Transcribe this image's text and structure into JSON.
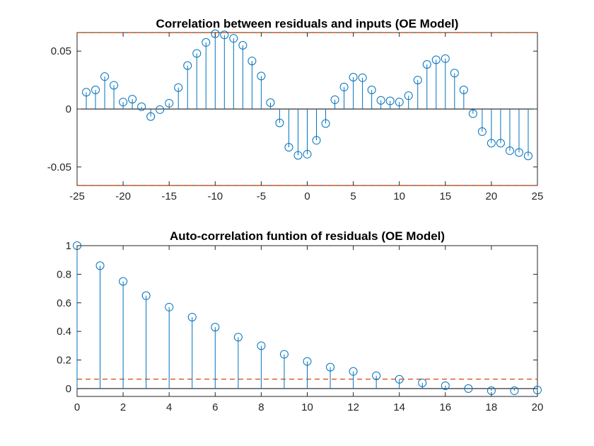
{
  "chart_data": [
    {
      "type": "stem",
      "title": "Correlation between residuals and inputs (OE Model)",
      "xlabel": "",
      "ylabel": "",
      "xlim": [
        -25,
        25
      ],
      "ylim": [
        -0.066,
        0.066
      ],
      "x_ticks": [
        -25,
        -20,
        -15,
        -10,
        -5,
        0,
        5,
        10,
        15,
        20,
        25
      ],
      "x_tick_labels": [
        "-25",
        "-20",
        "-15",
        "-10",
        "-5",
        "0",
        "5",
        "10",
        "15",
        "20",
        "25"
      ],
      "y_ticks": [
        -0.05,
        0,
        0.05
      ],
      "y_tick_labels": [
        "-0.05",
        "0",
        "0.05"
      ],
      "confidence_bound": 0.066,
      "grid": false,
      "colors": {
        "stem": "#0072BD",
        "bound": "#D95319",
        "zero_line": "#000000"
      },
      "series": [
        {
          "x": [
            -24,
            -23,
            -22,
            -21,
            -20,
            -19,
            -18,
            -17,
            -16,
            -15,
            -14,
            -13,
            -12,
            -11,
            -10,
            -9,
            -8,
            -7,
            -6,
            -5,
            -4,
            -3,
            -2,
            -1,
            0,
            1,
            2,
            3,
            4,
            5,
            6,
            7,
            8,
            9,
            10,
            11,
            12,
            13,
            14,
            15,
            16,
            17,
            18,
            19,
            20,
            21,
            22,
            23,
            24
          ],
          "values": [
            0.0145,
            0.0165,
            0.028,
            0.0205,
            0.006,
            0.0085,
            0.002,
            -0.0065,
            -0.0005,
            0.005,
            0.0185,
            0.0375,
            0.048,
            0.0575,
            0.065,
            0.064,
            0.061,
            0.055,
            0.0415,
            0.0285,
            0.0055,
            -0.012,
            -0.033,
            -0.04,
            -0.039,
            -0.027,
            -0.0125,
            0.008,
            0.019,
            0.0275,
            0.027,
            0.0165,
            0.0075,
            0.007,
            0.006,
            0.0115,
            0.025,
            0.0385,
            0.0425,
            0.0435,
            0.031,
            0.0165,
            -0.004,
            -0.0195,
            -0.0295,
            -0.0295,
            -0.036,
            -0.0375,
            -0.0405
          ]
        }
      ]
    },
    {
      "type": "stem",
      "title": "Auto-correlation funtion of residuals (OE Model)",
      "xlabel": "",
      "ylabel": "",
      "xlim": [
        0,
        20
      ],
      "ylim": [
        -0.055,
        1.0
      ],
      "x_ticks": [
        0,
        2,
        4,
        6,
        8,
        10,
        12,
        14,
        16,
        18,
        20
      ],
      "x_tick_labels": [
        "0",
        "2",
        "4",
        "6",
        "8",
        "10",
        "12",
        "14",
        "16",
        "18",
        "20"
      ],
      "y_ticks": [
        0,
        0.2,
        0.4,
        0.6,
        0.8,
        1
      ],
      "y_tick_labels": [
        "0",
        "0.2",
        "0.4",
        "0.6",
        "0.8",
        "1"
      ],
      "confidence_bound": 0.066,
      "grid": false,
      "colors": {
        "stem": "#0072BD",
        "bound": "#D95319",
        "zero_line": "#000000"
      },
      "series": [
        {
          "x": [
            0,
            1,
            2,
            3,
            4,
            5,
            6,
            7,
            8,
            9,
            10,
            11,
            12,
            13,
            14,
            15,
            16,
            17,
            18,
            19,
            20
          ],
          "values": [
            1.0,
            0.86,
            0.75,
            0.65,
            0.57,
            0.5,
            0.43,
            0.36,
            0.3,
            0.24,
            0.19,
            0.15,
            0.12,
            0.09,
            0.065,
            0.04,
            0.02,
            0.0,
            -0.015,
            -0.015,
            -0.01
          ]
        }
      ]
    }
  ]
}
